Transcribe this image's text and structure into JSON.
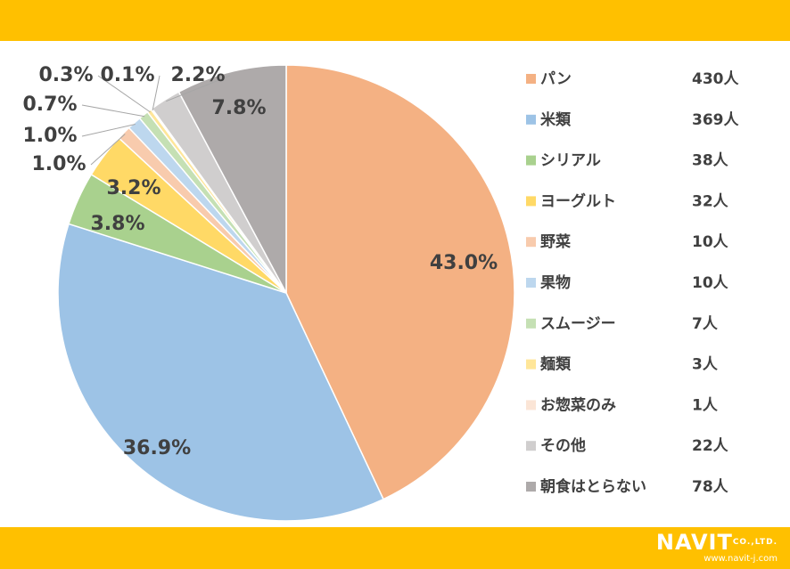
{
  "brand": {
    "logo_text": "NAVIT",
    "logo_suffix": "CO.,LTD.",
    "url": "www.navit-j.com"
  },
  "colors": {
    "band": "#FFC000"
  },
  "chart_data": {
    "type": "pie",
    "title": "",
    "legend_position": "right",
    "start_angle": "12 o'clock, clockwise",
    "slices": [
      {
        "label": "パン",
        "count": "430人",
        "percent_label": "43.0%",
        "value": 43.0,
        "color": "#F4B183"
      },
      {
        "label": "米類",
        "count": "369人",
        "percent_label": "36.9%",
        "value": 36.9,
        "color": "#9DC3E6"
      },
      {
        "label": "シリアル",
        "count": "38人",
        "percent_label": "3.8%",
        "value": 3.8,
        "color": "#A9D18E"
      },
      {
        "label": "ヨーグルト",
        "count": "32人",
        "percent_label": "3.2%",
        "value": 3.2,
        "color": "#FFD966"
      },
      {
        "label": "野菜",
        "count": "10人",
        "percent_label": "1.0%",
        "value": 1.0,
        "color": "#F8CBAD"
      },
      {
        "label": "果物",
        "count": "10人",
        "percent_label": "1.0%",
        "value": 1.0,
        "color": "#BDD7EE"
      },
      {
        "label": "スムージー",
        "count": "7人",
        "percent_label": "0.7%",
        "value": 0.7,
        "color": "#C5E0B4"
      },
      {
        "label": "麺類",
        "count": "3人",
        "percent_label": "0.3%",
        "value": 0.3,
        "color": "#FFE699"
      },
      {
        "label": "お惣菜のみ",
        "count": "1人",
        "percent_label": "0.1%",
        "value": 0.1,
        "color": "#FBE5D6"
      },
      {
        "label": "その他",
        "count": "22人",
        "percent_label": "2.2%",
        "value": 2.2,
        "color": "#D0CECE"
      },
      {
        "label": "朝食はとらない",
        "count": "78人",
        "percent_label": "7.8%",
        "value": 7.8,
        "color": "#AEAAAA"
      }
    ]
  }
}
